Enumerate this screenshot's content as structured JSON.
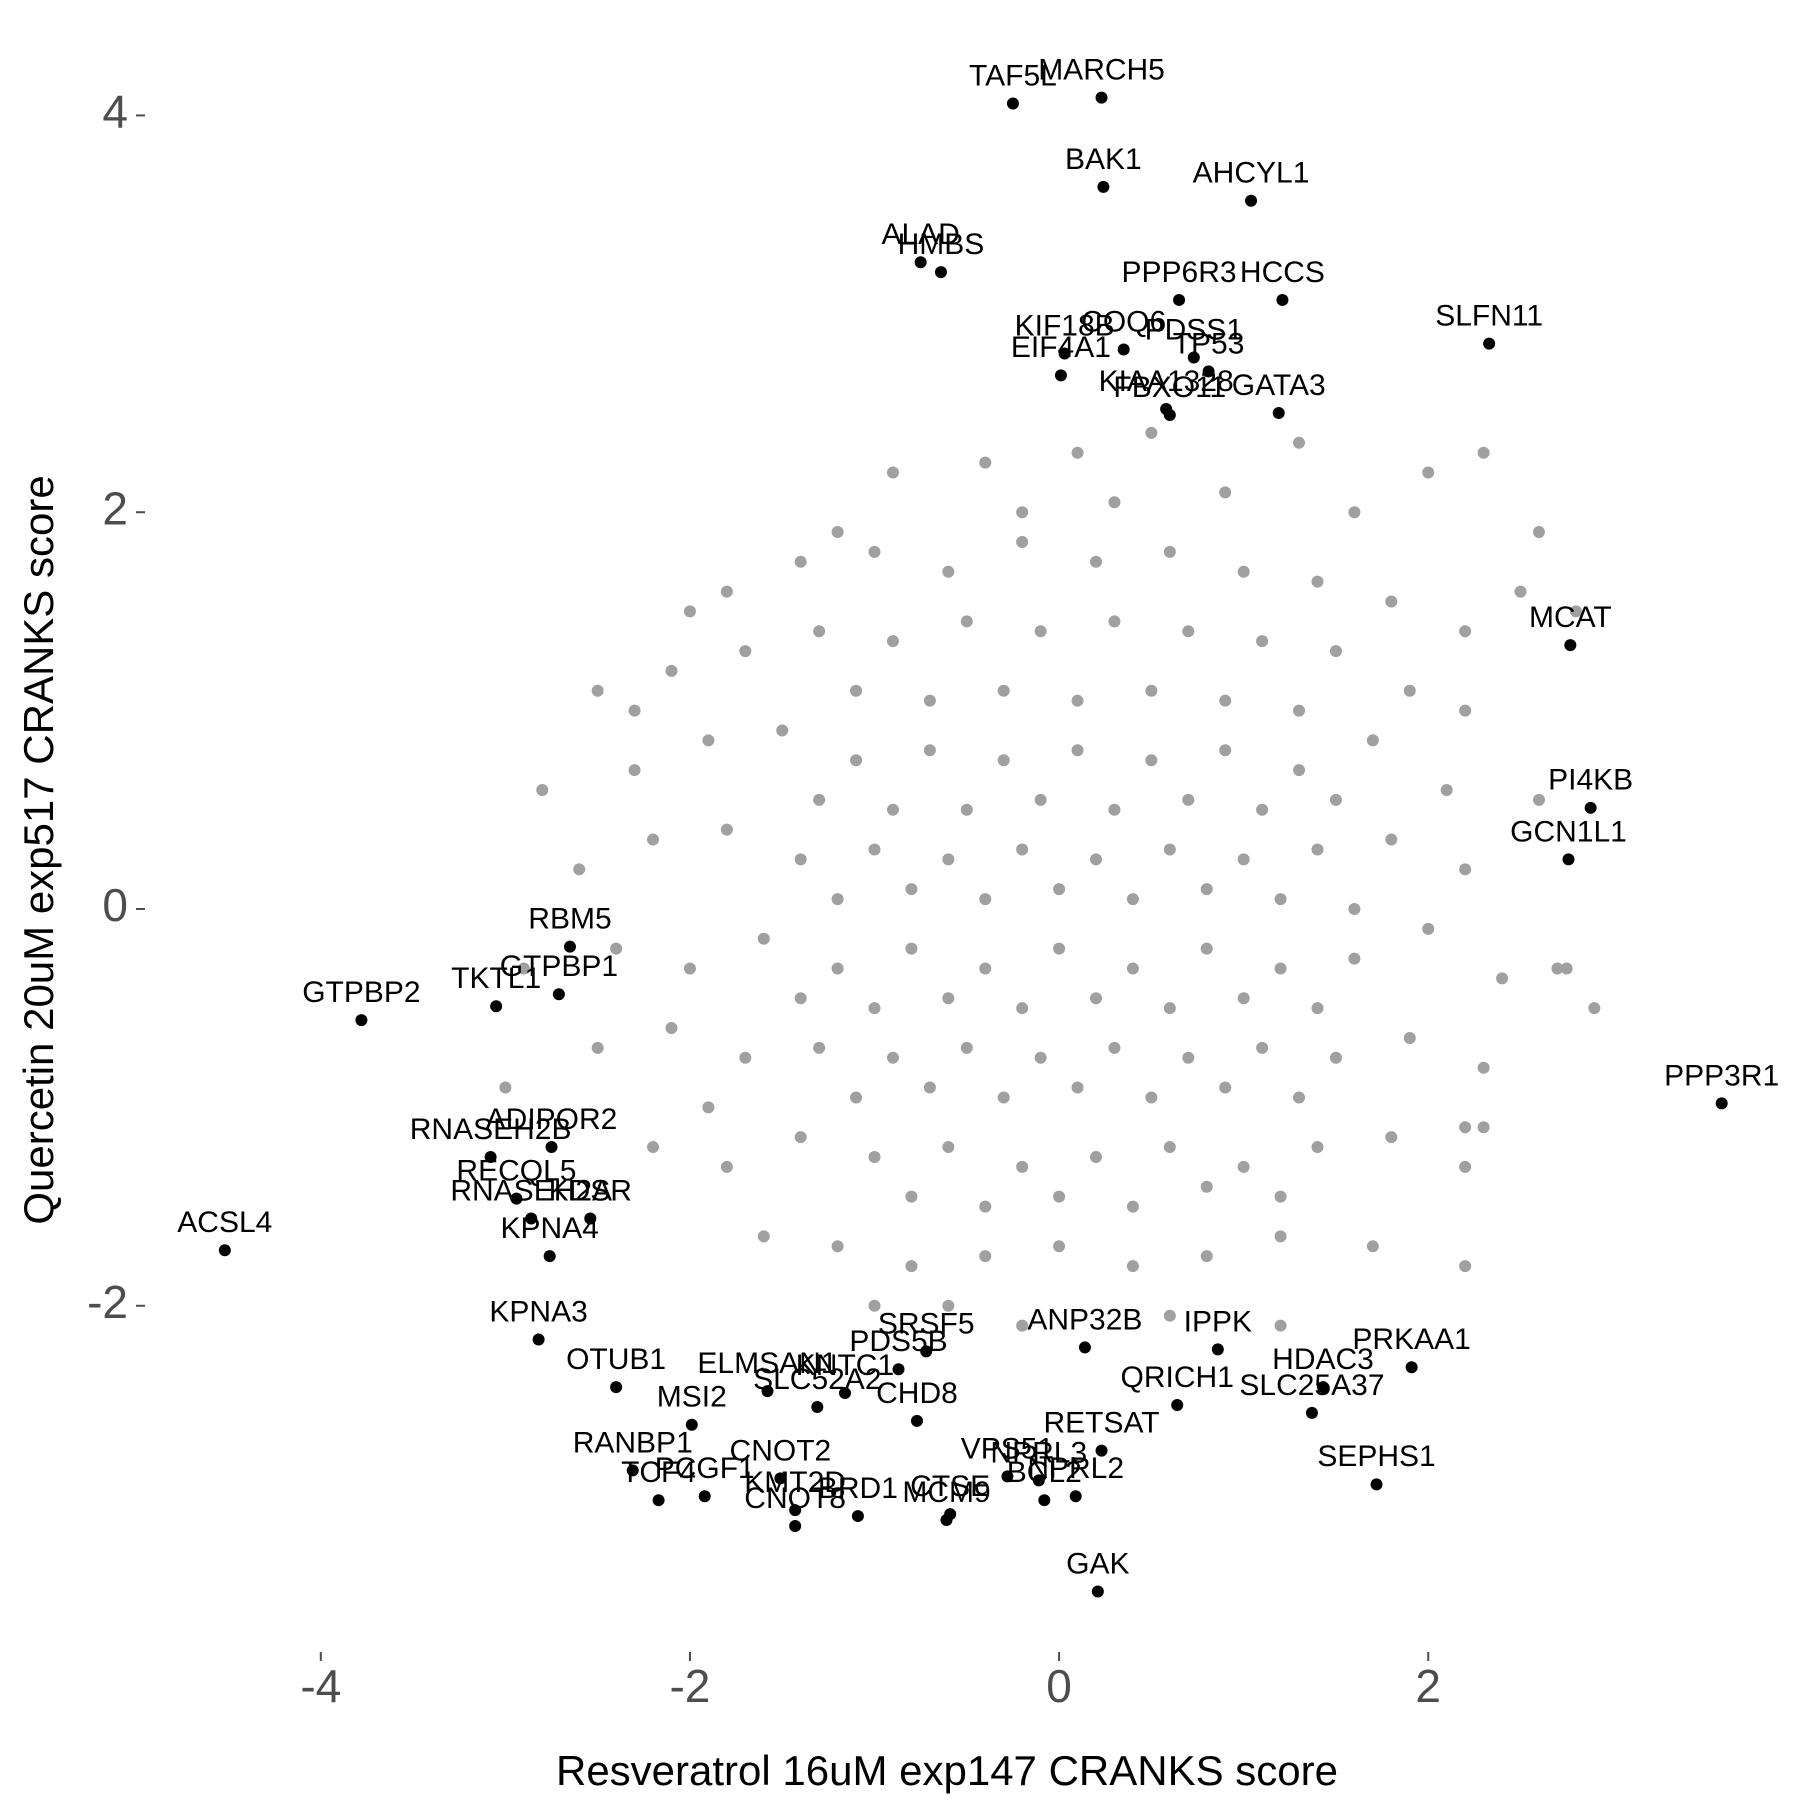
{
  "chart_data": {
    "type": "scatter",
    "xlabel": "Resveratrol 16uM exp147 CRANKS score",
    "ylabel": "Quercetin 20uM exp517 CRANKS score",
    "xlim": [
      -4.92,
      3.7
    ],
    "ylim": [
      -3.72,
      4.35
    ],
    "xticks": [
      -4,
      -2,
      0,
      2
    ],
    "yticks": [
      -2,
      0,
      2,
      4
    ],
    "series": [
      {
        "color": "#a0a0a0",
        "x": [
          -0.4,
          0.1,
          0.5,
          0.9,
          1.3,
          -0.9,
          2.3,
          2.0,
          -1.2,
          0.3,
          1.6,
          -0.2,
          -1.8,
          -1.4,
          -1.0,
          -0.6,
          -0.2,
          0.2,
          0.6,
          1.0,
          1.4,
          1.8,
          2.5,
          2.2,
          -2.0,
          -2.1,
          -1.7,
          -1.3,
          -0.9,
          -0.5,
          -0.1,
          0.3,
          0.7,
          1.1,
          1.5,
          1.9,
          -1.1,
          -0.7,
          -0.3,
          0.1,
          0.5,
          0.9,
          1.3,
          2.2,
          -2.5,
          -2.3,
          -1.9,
          -1.5,
          -1.1,
          -0.7,
          -0.3,
          0.1,
          0.5,
          0.9,
          1.3,
          1.7,
          2.1,
          2.6,
          -1.3,
          -0.9,
          -0.5,
          -0.1,
          0.3,
          0.7,
          1.1,
          1.5,
          -2.8,
          -2.6,
          -2.2,
          -1.8,
          -1.4,
          -1.0,
          -0.6,
          -0.2,
          0.2,
          0.6,
          1.0,
          1.4,
          1.8,
          2.2,
          -1.2,
          -0.8,
          -0.4,
          0.0,
          0.4,
          0.8,
          1.2,
          1.6,
          -2.4,
          -2.0,
          -1.6,
          -1.2,
          -0.8,
          -0.4,
          0.0,
          0.4,
          0.8,
          1.2,
          1.6,
          2.0,
          2.4,
          -1.4,
          -1.0,
          -0.6,
          -0.2,
          0.2,
          0.6,
          1.0,
          1.4,
          2.7,
          -2.5,
          -2.1,
          -1.7,
          -1.3,
          -0.9,
          -0.5,
          -0.1,
          0.3,
          0.7,
          1.1,
          1.5,
          1.9,
          2.3,
          -1.1,
          -0.7,
          -0.3,
          0.1,
          0.5,
          0.9,
          1.3,
          -1.9,
          -2.2,
          -1.8,
          -1.4,
          -1.0,
          -0.6,
          -0.2,
          0.2,
          0.6,
          1.0,
          1.4,
          1.8,
          2.2,
          -0.8,
          -0.4,
          0.0,
          0.4,
          0.8,
          1.2,
          2.2,
          -1.6,
          -1.2,
          -0.8,
          -0.4,
          0.0,
          0.4,
          0.8,
          1.2,
          1.7,
          -0.6,
          0.6,
          -1.0,
          1.2,
          2.2,
          -0.2,
          -2.9,
          2.9,
          -3.0,
          2.6,
          2.8,
          -2.3,
          2.75,
          2.3
        ],
        "y": [
          2.25,
          2.3,
          2.4,
          2.1,
          2.35,
          2.2,
          2.3,
          2.2,
          1.9,
          2.05,
          2.0,
          2.0,
          1.6,
          1.75,
          1.8,
          1.7,
          1.85,
          1.75,
          1.8,
          1.7,
          1.65,
          1.55,
          1.6,
          1.4,
          1.5,
          1.2,
          1.3,
          1.4,
          1.35,
          1.45,
          1.4,
          1.45,
          1.4,
          1.35,
          1.3,
          1.1,
          1.1,
          1.05,
          1.1,
          1.05,
          1.1,
          1.05,
          1.0,
          1.0,
          1.1,
          0.7,
          0.85,
          0.9,
          0.75,
          0.8,
          0.75,
          0.8,
          0.75,
          0.8,
          0.7,
          0.85,
          0.6,
          0.55,
          0.55,
          0.5,
          0.5,
          0.55,
          0.5,
          0.55,
          0.5,
          0.55,
          0.6,
          0.2,
          0.35,
          0.4,
          0.25,
          0.3,
          0.25,
          0.3,
          0.25,
          0.3,
          0.25,
          0.3,
          0.35,
          0.2,
          0.05,
          0.1,
          0.05,
          0.1,
          0.05,
          0.1,
          0.05,
          0.0,
          -0.2,
          -0.3,
          -0.15,
          -0.3,
          -0.2,
          -0.3,
          -0.2,
          -0.3,
          -0.2,
          -0.3,
          -0.25,
          -0.1,
          -0.35,
          -0.45,
          -0.5,
          -0.45,
          -0.5,
          -0.45,
          -0.5,
          -0.45,
          -0.5,
          -0.3,
          -0.7,
          -0.6,
          -0.75,
          -0.7,
          -0.75,
          -0.7,
          -0.75,
          -0.7,
          -0.75,
          -0.7,
          -0.75,
          -0.65,
          -0.8,
          -0.95,
          -0.9,
          -0.95,
          -0.9,
          -0.95,
          -0.9,
          -0.95,
          -1.0,
          -1.2,
          -1.3,
          -1.15,
          -1.25,
          -1.2,
          -1.3,
          -1.25,
          -1.2,
          -1.3,
          -1.2,
          -1.15,
          -1.1,
          -1.45,
          -1.5,
          -1.45,
          -1.5,
          -1.4,
          -1.45,
          -1.3,
          -1.65,
          -1.7,
          -1.8,
          -1.75,
          -1.7,
          -1.8,
          -1.75,
          -1.65,
          -1.7,
          -2.0,
          -2.05,
          -2.0,
          -2.1,
          -1.8,
          -2.1,
          -0.3,
          -0.5,
          -0.9,
          1.9,
          1.5,
          1.0,
          -0.3,
          -1.1
        ]
      },
      {
        "color": "#000000",
        "labels": [
          "TAF5L",
          "MARCH5",
          "BAK1",
          "AHCYL1",
          "ALAD",
          "HMBS",
          "PPP6R3",
          "HCCS",
          "SLFN11",
          "COQ6",
          "PDSS1",
          "KIF18B",
          "TP53",
          "EIF4A1",
          "KIAA1328",
          "FBXO11",
          "GATA3",
          "MCAT",
          "PI4KB",
          "GCN1L1",
          "PPP3R1",
          "RBM5",
          "GTPBP1",
          "TKTL1",
          "GTPBP2",
          "RNASEH2B",
          "ADIPOR2",
          "RECQL5",
          "RNASEH2A",
          "KDSR",
          "ACSL4",
          "KPNA4",
          "KPNA3",
          "OTUB1",
          "ELMSAN1",
          "KNTC1",
          "SRSF5",
          "PDS5B",
          "MSI2",
          "SLC52A2",
          "CHD8",
          "ANP32B",
          "IPPK",
          "HDAC3",
          "PRKAA1",
          "QRICH1",
          "SLC25A37",
          "RETSAT",
          "VPS51",
          "RANBP1",
          "TCF4",
          "CNOT2",
          "PCGF1",
          "KMT2D",
          "BRD1",
          "CTSE",
          "NPRL2",
          "NPRL3",
          "BCL2",
          "SEPHS1",
          "GAK",
          "MCM9",
          "CNOT8"
        ],
        "x": [
          -0.25,
          0.23,
          0.24,
          1.04,
          -0.75,
          -0.64,
          0.65,
          1.21,
          2.33,
          0.35,
          0.73,
          0.03,
          0.81,
          0.01,
          0.58,
          0.6,
          1.19,
          2.77,
          2.88,
          2.76,
          3.59,
          -2.65,
          -2.71,
          -3.05,
          -3.78,
          -3.08,
          -2.75,
          -2.94,
          -2.86,
          -2.54,
          -4.52,
          -2.76,
          -2.82,
          -2.4,
          -1.58,
          -1.16,
          -0.72,
          -0.87,
          -1.99,
          -1.31,
          -0.77,
          0.14,
          0.86,
          1.43,
          1.91,
          0.64,
          1.37,
          0.23,
          -0.28,
          -2.31,
          -2.17,
          -1.51,
          -1.92,
          -1.43,
          -1.09,
          -0.59,
          0.09,
          -0.11,
          -0.08,
          1.72,
          0.21,
          -0.61,
          -1.43
        ],
        "y": [
          4.06,
          4.09,
          3.64,
          3.57,
          3.26,
          3.21,
          3.07,
          3.07,
          2.85,
          2.82,
          2.78,
          2.8,
          2.71,
          2.69,
          2.52,
          2.49,
          2.5,
          1.33,
          0.51,
          0.25,
          -0.98,
          -0.19,
          -0.43,
          -0.49,
          -0.56,
          -1.25,
          -1.2,
          -1.46,
          -1.56,
          -1.56,
          -1.72,
          -1.75,
          -2.17,
          -2.41,
          -2.43,
          -2.44,
          -2.23,
          -2.32,
          -2.6,
          -2.51,
          -2.58,
          -2.21,
          -2.22,
          -2.41,
          -2.31,
          -2.5,
          -2.54,
          -2.73,
          -2.86,
          -2.83,
          -2.98,
          -2.87,
          -2.96,
          -3.03,
          -3.06,
          -3.05,
          -2.96,
          -2.88,
          -2.98,
          -2.9,
          -3.44,
          -3.08,
          -3.11
        ]
      }
    ]
  }
}
